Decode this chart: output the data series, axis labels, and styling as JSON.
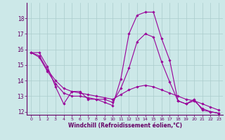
{
  "title": "",
  "xlabel": "Windchill (Refroidissement éolien,°C)",
  "ylabel": "",
  "background_color": "#cce8e8",
  "line_color": "#990099",
  "grid_color": "#aacccc",
  "axis_color": "#660066",
  "text_color": "#660066",
  "xlim": [
    -0.5,
    23.5
  ],
  "ylim": [
    11.8,
    19.0
  ],
  "xticks": [
    0,
    1,
    2,
    3,
    4,
    5,
    6,
    7,
    8,
    9,
    10,
    11,
    12,
    13,
    14,
    15,
    16,
    17,
    18,
    19,
    20,
    21,
    22,
    23
  ],
  "yticks": [
    12,
    13,
    14,
    15,
    16,
    17,
    18
  ],
  "series1_x": [
    0,
    1,
    2,
    3,
    4,
    5,
    6,
    7,
    8,
    9,
    10,
    11,
    12,
    13,
    14,
    15,
    16,
    17,
    18,
    19,
    20,
    21,
    22,
    23
  ],
  "series1_y": [
    15.8,
    15.8,
    14.9,
    13.6,
    12.5,
    13.3,
    13.3,
    12.8,
    12.8,
    12.6,
    12.4,
    14.1,
    17.0,
    18.2,
    18.4,
    18.4,
    16.7,
    15.3,
    12.7,
    12.5,
    12.8,
    12.1,
    12.0,
    11.9
  ],
  "series2_x": [
    0,
    1,
    2,
    3,
    4,
    5,
    6,
    7,
    8,
    9,
    10,
    11,
    12,
    13,
    14,
    15,
    16,
    17,
    18,
    19,
    20,
    21,
    22,
    23
  ],
  "series2_y": [
    15.8,
    15.6,
    14.7,
    14.0,
    13.5,
    13.3,
    13.2,
    13.1,
    13.0,
    12.9,
    12.8,
    13.1,
    13.4,
    13.6,
    13.7,
    13.6,
    13.4,
    13.2,
    13.0,
    12.8,
    12.7,
    12.5,
    12.3,
    12.1
  ],
  "series3_x": [
    0,
    1,
    2,
    3,
    4,
    5,
    6,
    7,
    8,
    9,
    10,
    11,
    12,
    13,
    14,
    15,
    16,
    17,
    18,
    19,
    20,
    21,
    22,
    23
  ],
  "series3_y": [
    15.8,
    15.5,
    14.6,
    13.8,
    13.2,
    13.0,
    13.0,
    12.9,
    12.8,
    12.8,
    12.6,
    13.5,
    14.8,
    16.5,
    17.0,
    16.8,
    15.2,
    13.9,
    12.7,
    12.5,
    12.7,
    12.2,
    12.0,
    11.9
  ]
}
